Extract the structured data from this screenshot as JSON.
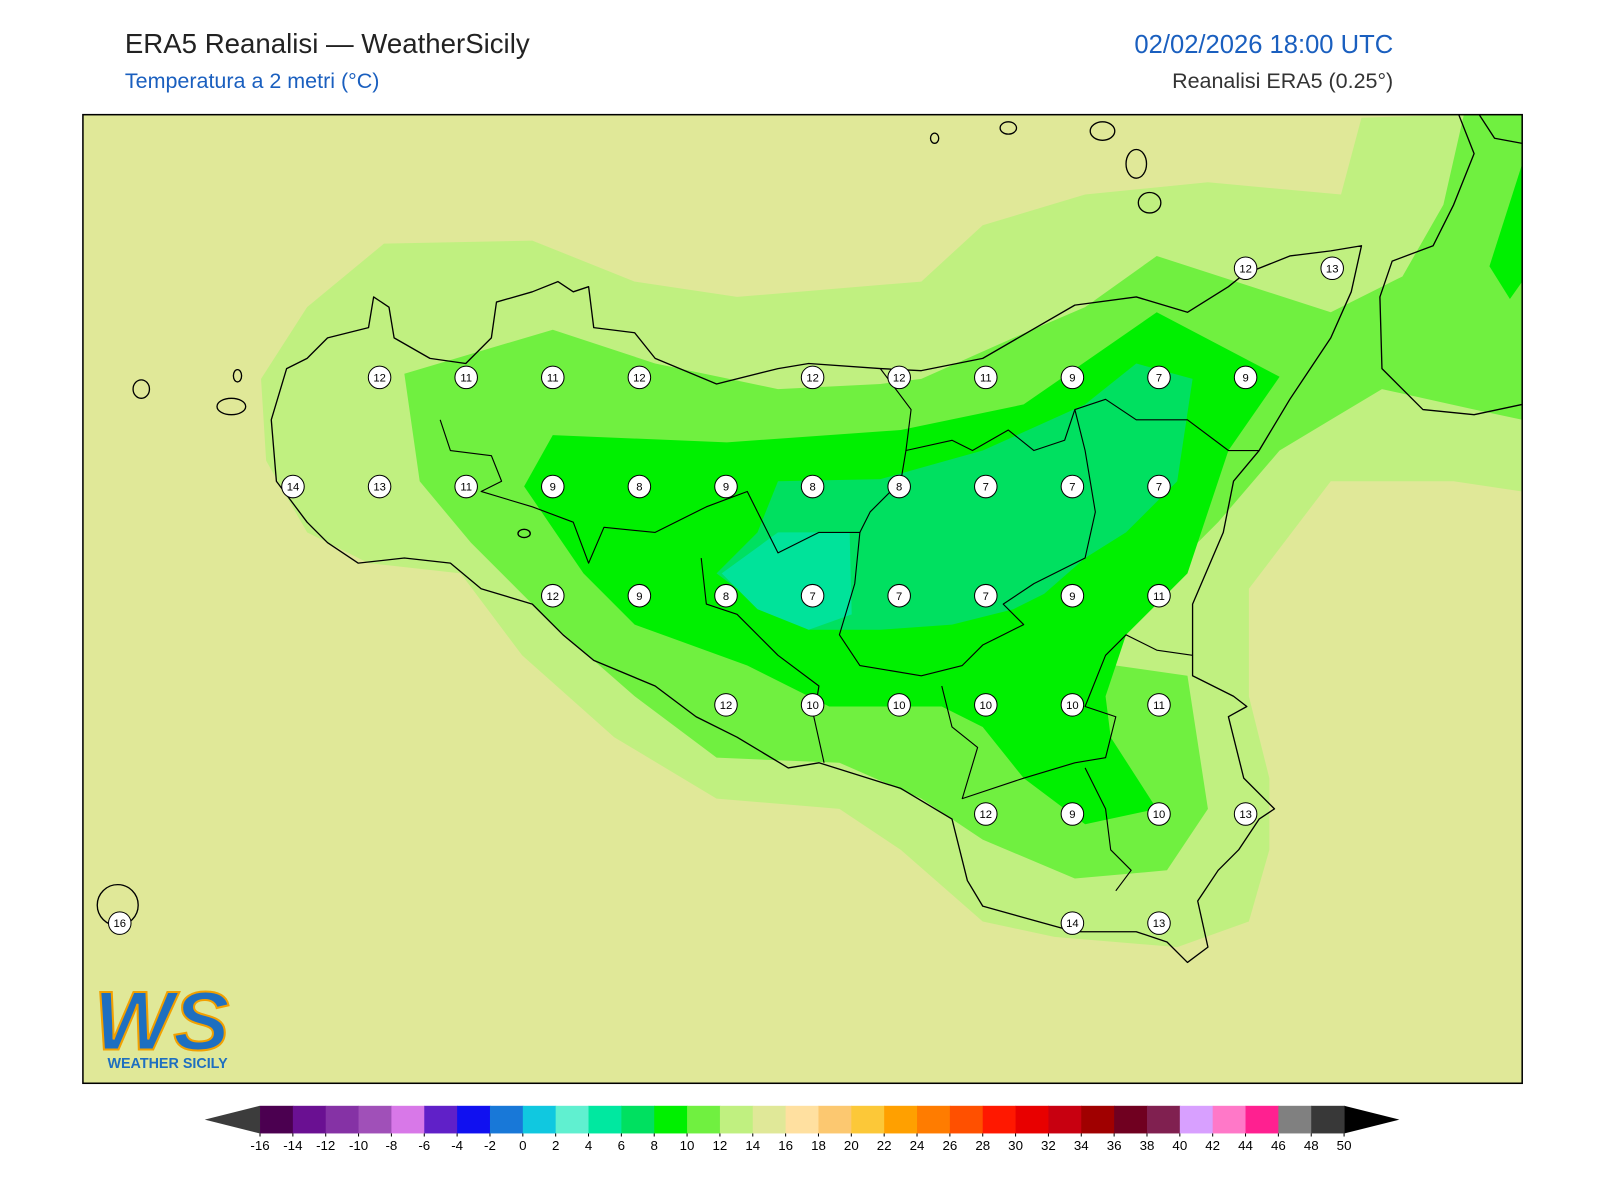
{
  "header": {
    "title": "ERA5 Reanalisi — WeatherSicily",
    "subtitle": "Temperatura a 2 metri (°C)",
    "datetime": "02/02/2026 18:00 UTC",
    "source": "Reanalisi ERA5 (0.25°)"
  },
  "map": {
    "grid": [
      [
        null,
        null,
        null,
        null,
        null,
        null,
        null,
        null,
        null,
        null,
        null,
        null,
        null,
        12,
        13
      ],
      [
        null,
        null,
        null,
        12,
        11,
        11,
        12,
        null,
        12,
        12,
        11,
        9,
        7,
        9,
        null
      ],
      [
        null,
        null,
        14,
        13,
        11,
        9,
        8,
        9,
        8,
        8,
        7,
        7,
        7,
        null,
        null
      ],
      [
        null,
        null,
        null,
        null,
        null,
        12,
        9,
        8,
        7,
        7,
        7,
        9,
        11,
        null,
        null
      ],
      [
        null,
        null,
        null,
        null,
        null,
        null,
        null,
        12,
        10,
        10,
        10,
        10,
        11,
        null,
        null
      ],
      [
        null,
        null,
        null,
        null,
        null,
        null,
        null,
        null,
        null,
        null,
        12,
        9,
        10,
        13,
        null
      ],
      [
        16,
        null,
        null,
        null,
        null,
        null,
        null,
        null,
        null,
        null,
        null,
        14,
        13,
        null,
        null
      ]
    ]
  },
  "colorbar": {
    "ticks": [
      -16,
      -14,
      -12,
      -10,
      -8,
      -6,
      -4,
      -2,
      0,
      2,
      4,
      6,
      8,
      10,
      12,
      14,
      16,
      18,
      20,
      22,
      24,
      26,
      28,
      30,
      32,
      34,
      36,
      38,
      40,
      42,
      44,
      46,
      48,
      50
    ],
    "colors": [
      "#4b0050",
      "#6a1092",
      "#8532a5",
      "#a050b8",
      "#d878e8",
      "#6020c8",
      "#1010f0",
      "#1878d8",
      "#10c8e0",
      "#60f0d0",
      "#00e8a0",
      "#00e060",
      "#00f000",
      "#70f040",
      "#c0f080",
      "#e0e898",
      "#ffe0a0",
      "#fcc870",
      "#fcc838",
      "#ffa000",
      "#ff7c00",
      "#ff5000",
      "#ff1800",
      "#e80000",
      "#c80010",
      "#a00000",
      "#700020",
      "#802050",
      "#d8a0ff",
      "#ff78c8",
      "#ff2090",
      "#808080",
      "#383838"
    ],
    "under_color": "#3c3c3c",
    "over_color": "#000000"
  },
  "logo": {
    "mark": "WS",
    "caption": "WEATHER SICILY"
  }
}
